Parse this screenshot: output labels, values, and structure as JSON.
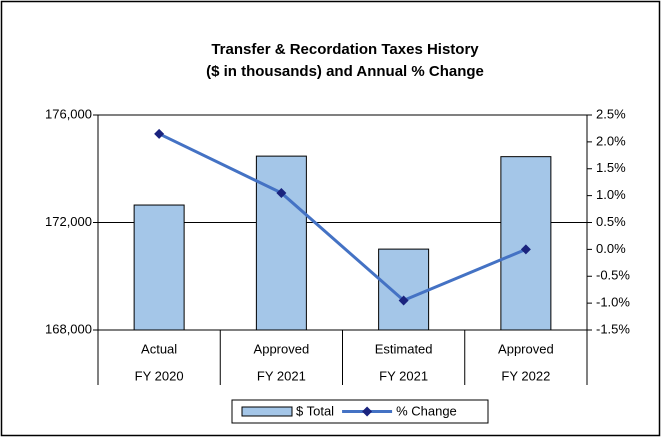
{
  "chart_data": {
    "type": "bar-line",
    "title": [
      "Transfer & Recordation Taxes History",
      "($ in thousands) and Annual % Change"
    ],
    "categories": [
      [
        "Actual",
        "FY 2020"
      ],
      [
        "Approved",
        "FY 2021"
      ],
      [
        "Estimated",
        "FY 2021"
      ],
      [
        "Approved",
        "FY 2022"
      ]
    ],
    "series": [
      {
        "name": "$ Total",
        "type": "bar",
        "color": "#a4c6e8",
        "values": [
          172650,
          174470,
          171010,
          174450
        ]
      },
      {
        "name": "% Change",
        "type": "line",
        "axis": "y2",
        "color": "#4472c4",
        "marker_color": "#1a237e",
        "values": [
          2.15,
          1.05,
          -0.95,
          0.0
        ]
      }
    ],
    "ylim": [
      168000,
      176000
    ],
    "yticks": [
      {
        "value": 168000,
        "label": "168,000"
      },
      {
        "value": 172000,
        "label": "172,000"
      },
      {
        "value": 176000,
        "label": "176,000"
      }
    ],
    "y2lim": [
      -1.5,
      2.5
    ],
    "y2ticks": [
      {
        "value": -1.5,
        "label": "-1.5%"
      },
      {
        "value": -1.0,
        "label": "-1.0%"
      },
      {
        "value": -0.5,
        "label": "-0.5%"
      },
      {
        "value": 0.0,
        "label": "0.0%"
      },
      {
        "value": 0.5,
        "label": "0.5%"
      },
      {
        "value": 1.0,
        "label": "1.0%"
      },
      {
        "value": 1.5,
        "label": "1.5%"
      },
      {
        "value": 2.0,
        "label": "2.0%"
      },
      {
        "value": 2.5,
        "label": "2.5%"
      }
    ],
    "grid": true,
    "legend": "bottom"
  }
}
